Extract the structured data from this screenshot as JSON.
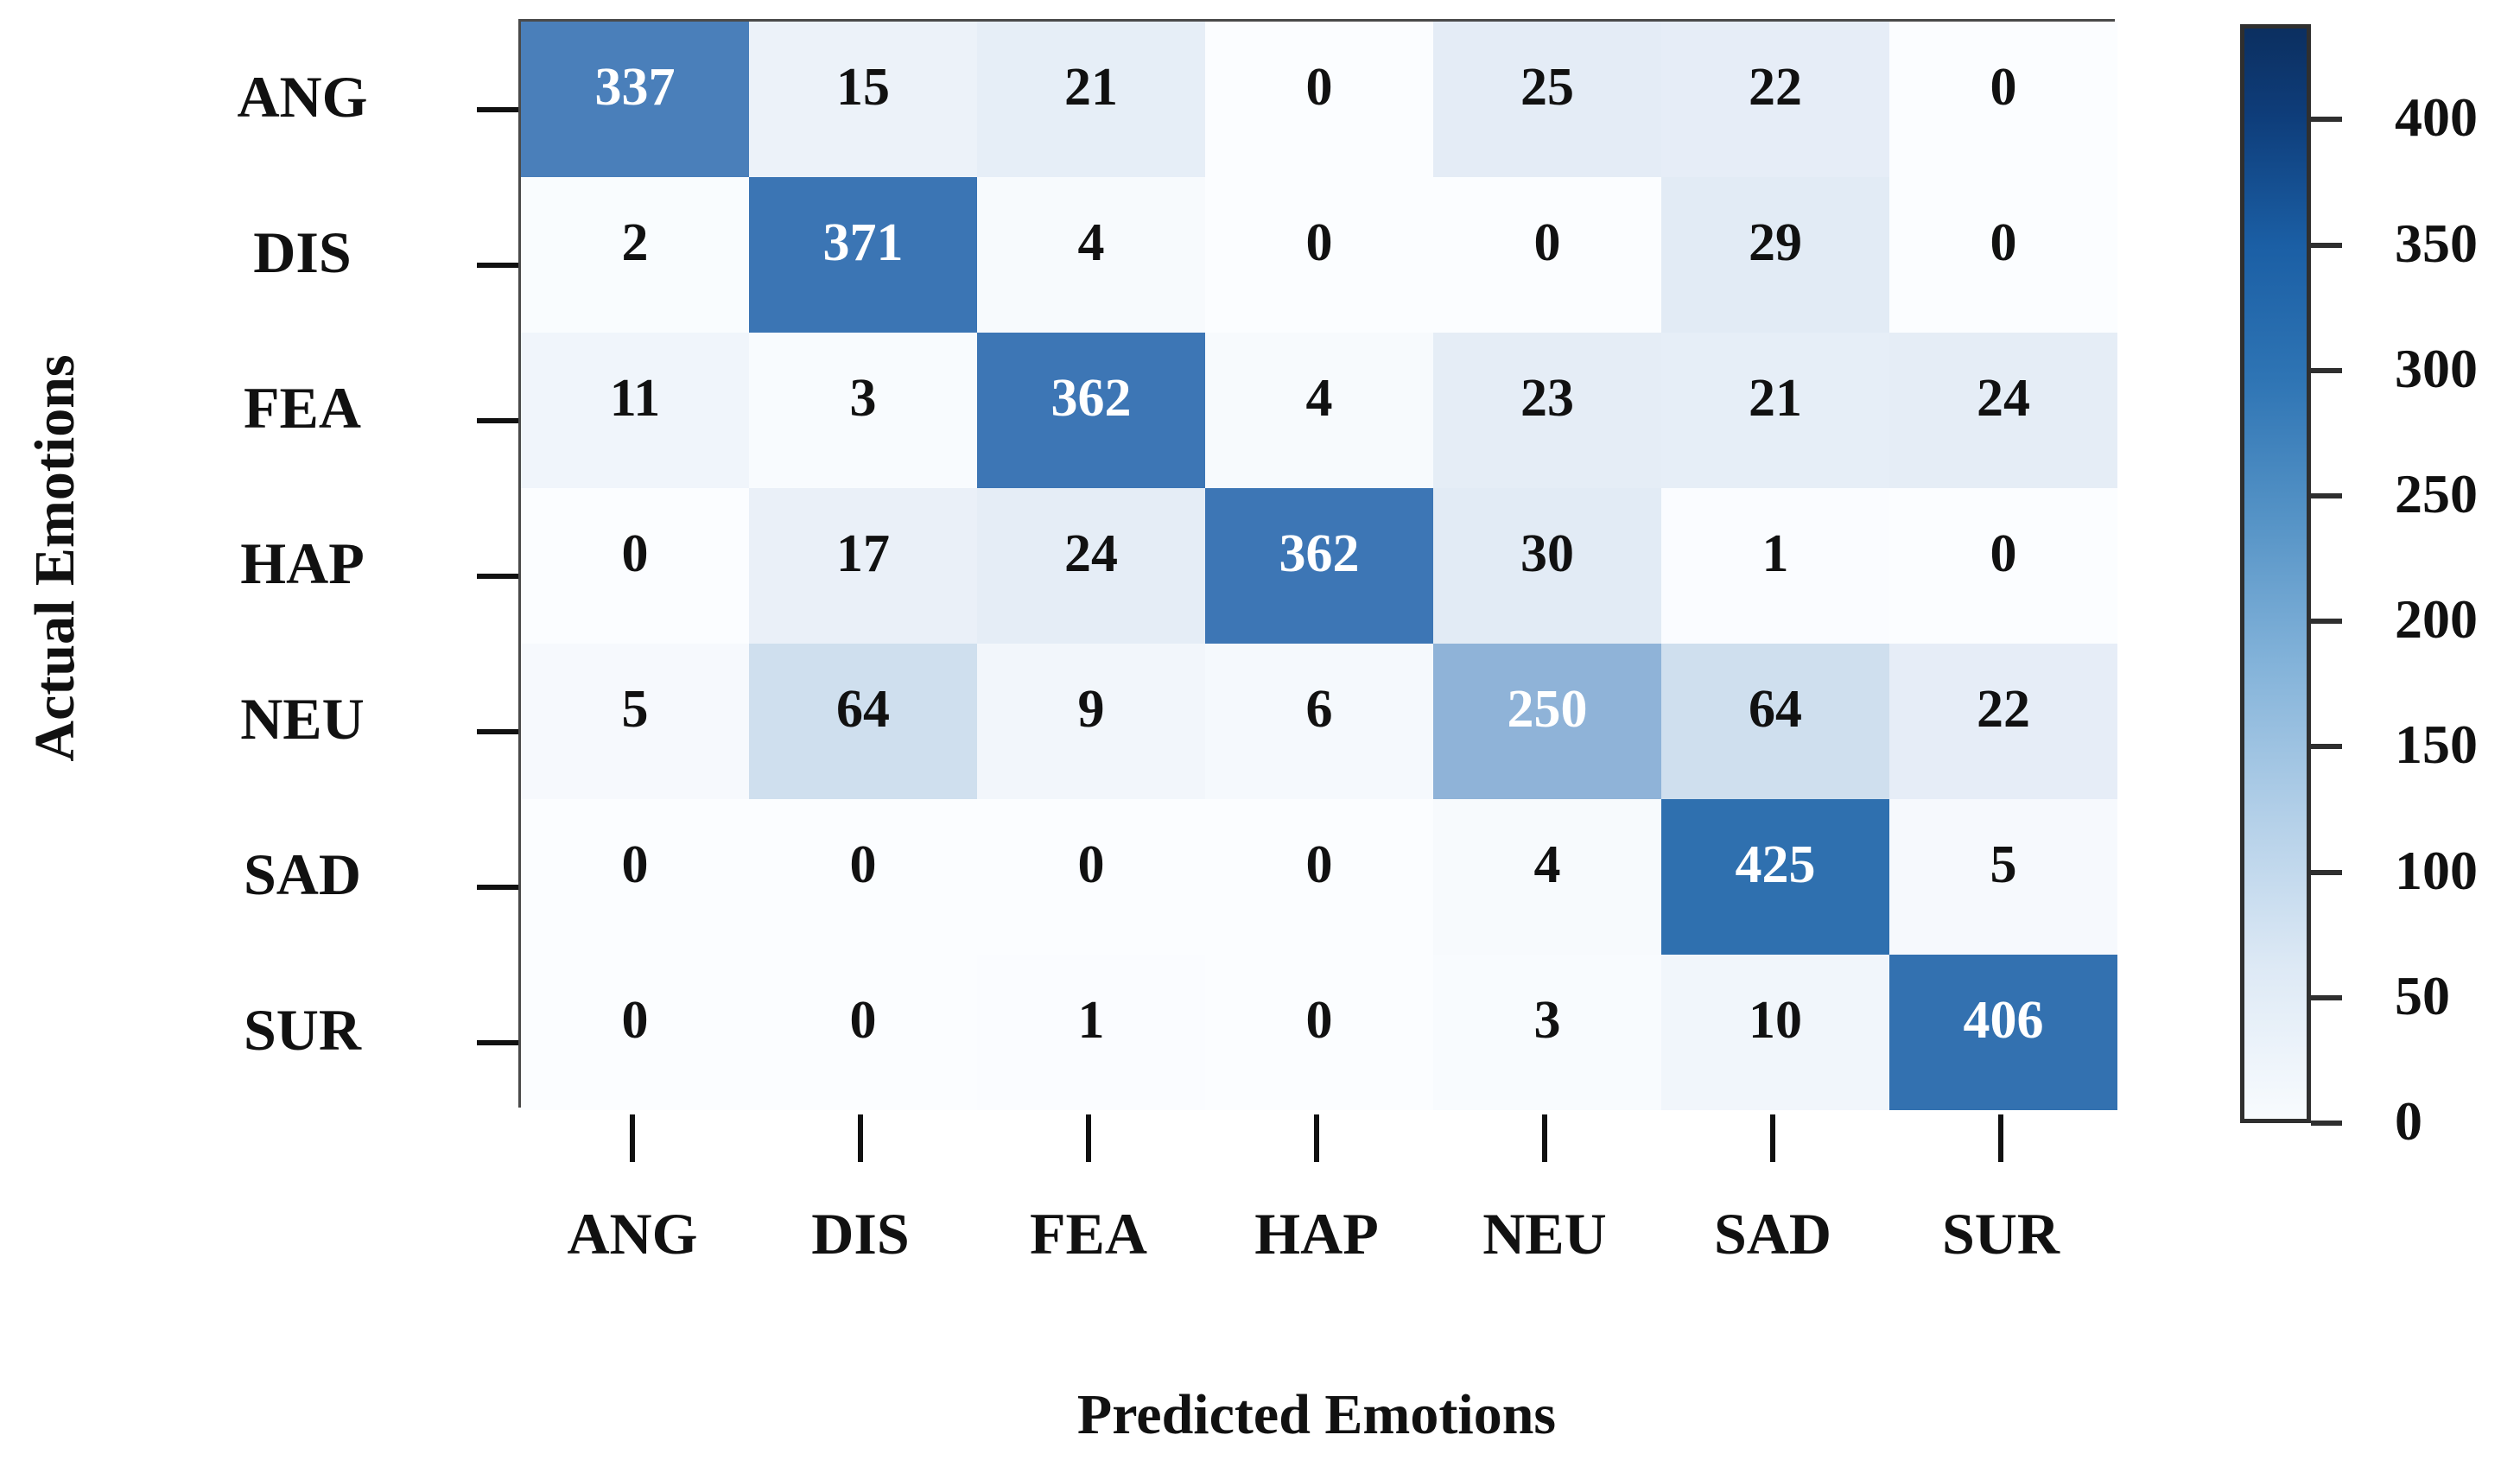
{
  "figure": {
    "x_axis_title": "Predicted Emotions",
    "y_axis_title": "Actual Emotions"
  },
  "chart_data": {
    "type": "heatmap",
    "title": "",
    "xlabel": "Predicted Emotions",
    "ylabel": "Actual Emotions",
    "x_categories": [
      "ANG",
      "DIS",
      "FEA",
      "HAP",
      "NEU",
      "SAD",
      "SUR"
    ],
    "y_categories": [
      "ANG",
      "DIS",
      "FEA",
      "HAP",
      "NEU",
      "SAD",
      "SUR"
    ],
    "matrix": [
      [
        337,
        15,
        21,
        0,
        25,
        22,
        0
      ],
      [
        2,
        371,
        4,
        0,
        0,
        29,
        0
      ],
      [
        11,
        3,
        362,
        4,
        23,
        21,
        24
      ],
      [
        0,
        17,
        24,
        362,
        30,
        1,
        0
      ],
      [
        5,
        64,
        9,
        6,
        250,
        64,
        22
      ],
      [
        0,
        0,
        0,
        0,
        4,
        425,
        5
      ],
      [
        0,
        0,
        1,
        0,
        3,
        10,
        406
      ]
    ],
    "grid": false,
    "legend_position": "none",
    "colorbar": {
      "tick_values": [
        400,
        350,
        300,
        250,
        200,
        150,
        100,
        50,
        0
      ],
      "vmin": 0,
      "vmax": 438,
      "top_color": "#0c2f60",
      "bottom_color": "#f8fbfe"
    },
    "colormap_anchors": [
      [
        0,
        "#fbfdff"
      ],
      [
        20,
        "#e7eef7"
      ],
      [
        64,
        "#cfdfee"
      ],
      [
        250,
        "#8fb3d8"
      ],
      [
        350,
        "#4077b6"
      ],
      [
        430,
        "#2e6fae"
      ]
    ],
    "cell_text_colors": {
      "light": "#ffffff",
      "dark": "#111111"
    }
  }
}
